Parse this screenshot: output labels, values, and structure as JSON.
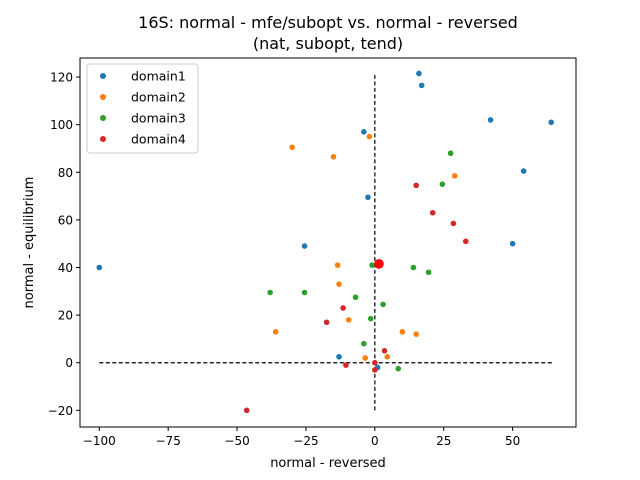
{
  "chart_data": {
    "type": "scatter",
    "title_line1": "16S: normal - mfe/subopt vs. normal - reversed",
    "title_line2": "(nat, subopt, tend)",
    "xlabel": "normal - reversed",
    "ylabel": "normal - equilibrium",
    "xlim": [
      -107,
      73
    ],
    "ylim": [
      -27,
      128
    ],
    "x_ticks": [
      -100,
      -75,
      -50,
      -25,
      0,
      25,
      50
    ],
    "x_tick_labels": [
      "−100",
      "−75",
      "−50",
      "−25",
      "0",
      "25",
      "50"
    ],
    "y_ticks": [
      -20,
      0,
      20,
      40,
      60,
      80,
      100,
      120
    ],
    "y_tick_labels": [
      "−20",
      "0",
      "20",
      "40",
      "60",
      "80",
      "100",
      "120"
    ],
    "grid": false,
    "legend_position": "top-left",
    "reference_lines": {
      "vertical": {
        "x": 0,
        "y_from": -20,
        "y_to": 121
      },
      "horizontal": {
        "y": 0,
        "x_from": -100,
        "x_to": 65
      }
    },
    "highlight_point": {
      "x": 1.5,
      "y": 41.5,
      "color": "#ff0000"
    },
    "series": [
      {
        "name": "domain1",
        "color": "#1f77b4",
        "points": [
          [
            -100,
            40
          ],
          [
            -25.5,
            49
          ],
          [
            -4,
            97
          ],
          [
            -2.5,
            69.5
          ],
          [
            16,
            121.5
          ],
          [
            17,
            116.5
          ],
          [
            42,
            102
          ],
          [
            54,
            80.5
          ],
          [
            50,
            50
          ],
          [
            64,
            101
          ],
          [
            -13,
            2.5
          ],
          [
            1,
            -2
          ]
        ]
      },
      {
        "name": "domain2",
        "color": "#ff7f0e",
        "points": [
          [
            -30,
            90.5
          ],
          [
            -15,
            86.5
          ],
          [
            -2,
            95
          ],
          [
            29,
            78.5
          ],
          [
            -13.5,
            41
          ],
          [
            -13,
            33
          ],
          [
            -36,
            13
          ],
          [
            -9.5,
            18
          ],
          [
            10,
            13
          ],
          [
            15,
            12
          ],
          [
            -3.5,
            2
          ],
          [
            4.5,
            2.5
          ]
        ]
      },
      {
        "name": "domain3",
        "color": "#2ca02c",
        "points": [
          [
            27.5,
            88
          ],
          [
            24.5,
            75
          ],
          [
            -1,
            41
          ],
          [
            14,
            40
          ],
          [
            19.5,
            38
          ],
          [
            -38,
            29.5
          ],
          [
            -25.5,
            29.5
          ],
          [
            -7,
            27.5
          ],
          [
            3,
            24.5
          ],
          [
            -1.5,
            18.5
          ],
          [
            -4,
            8
          ],
          [
            8.5,
            -2.5
          ]
        ]
      },
      {
        "name": "domain4",
        "color": "#d62728",
        "points": [
          [
            15,
            74.5
          ],
          [
            21,
            63
          ],
          [
            28.5,
            58.5
          ],
          [
            33,
            51
          ],
          [
            -11.5,
            23
          ],
          [
            -17.5,
            17
          ],
          [
            3.5,
            5
          ],
          [
            -10.5,
            -1
          ],
          [
            0,
            0
          ],
          [
            0,
            -3
          ],
          [
            -46.5,
            -20
          ]
        ]
      }
    ]
  }
}
